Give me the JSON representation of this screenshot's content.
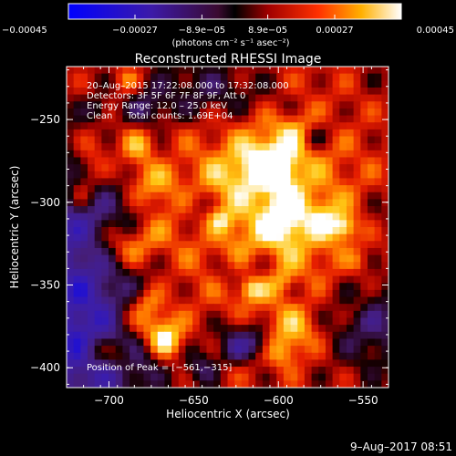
{
  "chart_data": {
    "type": "heatmap",
    "title": "Reconstructed RHESSI Image",
    "xlabel": "Heliocentric X (arcsec)",
    "ylabel": "Heliocentric Y (arcsec)",
    "xlim": [
      -725,
      -535
    ],
    "ylim": [
      -412,
      -218
    ],
    "x_ticks": [
      -700,
      -650,
      -600,
      -550
    ],
    "x_tick_labels": [
      "−700",
      "−650",
      "−600",
      "−550"
    ],
    "y_ticks": [
      -250,
      -300,
      -350,
      -400
    ],
    "y_tick_labels": [
      "−250",
      "−300",
      "−350",
      "−400"
    ],
    "colorbar": {
      "range": [
        -0.00045,
        0.00045
      ],
      "ticks": [
        -0.00045,
        -0.00027,
        -8.9e-05,
        8.9e-05,
        0.00027,
        0.00045
      ],
      "tick_labels": [
        "−0.00045",
        "−0.00027",
        "−8.9e−05",
        "8.9e−05",
        "0.00027",
        "0.00045"
      ],
      "unit_label": "(photons cm⁻² s⁻¹ asec⁻²)"
    },
    "annotations": [
      "20–Aug–2015 17:22:08.000 to 17:32:08.000",
      "Detectors: 3F 5F 6F 7F 8F 9F, Att 0",
      "Energy Range: 12.0 – 25.0 keV",
      "Clean     Total counts: 1.69E+04"
    ],
    "peak_label": "Position of Peak = [−561,−315]",
    "peak": [
      -561,
      -315
    ],
    "grid": false
  },
  "footer": {
    "timestamp": "9–Aug–2017 08:51"
  }
}
